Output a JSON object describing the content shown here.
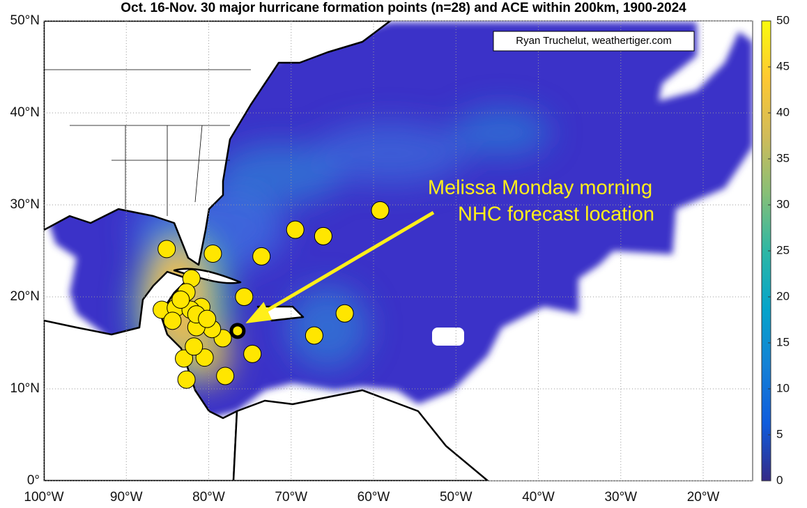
{
  "chart_data": {
    "type": "map",
    "title": "Oct. 16-Nov. 30 major hurricane formation points (n=28) and ACE within 200km, 1900-2024",
    "credit": "Ryan Truchelut, weathertiger.com",
    "annotation": [
      "Melissa Monday morning",
      "NHC forecast location"
    ],
    "xlim": [
      -100,
      -14
    ],
    "ylim": [
      0,
      50
    ],
    "xticks": [
      {
        "value": -100,
        "label": "100°W"
      },
      {
        "value": -90,
        "label": "90°W"
      },
      {
        "value": -80,
        "label": "80°W"
      },
      {
        "value": -70,
        "label": "70°W"
      },
      {
        "value": -60,
        "label": "60°W"
      },
      {
        "value": -50,
        "label": "50°W"
      },
      {
        "value": -40,
        "label": "40°W"
      },
      {
        "value": -30,
        "label": "30°W"
      },
      {
        "value": -20,
        "label": "20°W"
      }
    ],
    "yticks": [
      {
        "value": 0,
        "label": "0°"
      },
      {
        "value": 10,
        "label": "10°N"
      },
      {
        "value": 20,
        "label": "20°N"
      },
      {
        "value": 30,
        "label": "30°N"
      },
      {
        "value": 40,
        "label": "40°N"
      },
      {
        "value": 50,
        "label": "50°N"
      }
    ],
    "grid": true,
    "color": "#ffe600",
    "x": [
      -85.1,
      -79.5,
      -73.6,
      -69.5,
      -66.1,
      -59.2,
      -82.1,
      -82.7,
      -75.7,
      -63.5,
      -67.2,
      -74.7,
      -78.0,
      -82.7,
      -83.0,
      -80.5,
      -81.8,
      -78.3,
      -79.6,
      -81.5,
      -80.9,
      -85.7,
      -84.0,
      -84.4,
      -82.2,
      -81.5,
      -83.4,
      -80.2
    ],
    "y": [
      25.2,
      24.7,
      24.4,
      27.3,
      26.6,
      29.4,
      22.0,
      20.5,
      20.0,
      18.2,
      15.8,
      13.8,
      11.4,
      11.0,
      13.3,
      13.4,
      14.6,
      15.5,
      16.5,
      16.7,
      18.9,
      18.6,
      18.8,
      17.4,
      18.6,
      18.1,
      19.7,
      17.6
    ],
    "highlight": {
      "x": -76.5,
      "y": 16.3
    },
    "colorbar": {
      "lim": [
        0,
        50
      ],
      "ticks": [
        0,
        5,
        10,
        15,
        20,
        25,
        30,
        35,
        40,
        45,
        50
      ],
      "colors": [
        "#352a87",
        "#0f5cdd",
        "#1481d6",
        "#06a4ca",
        "#2eb7a4",
        "#87bf77",
        "#d1bb59",
        "#fec832",
        "#f9fb0e"
      ]
    }
  }
}
